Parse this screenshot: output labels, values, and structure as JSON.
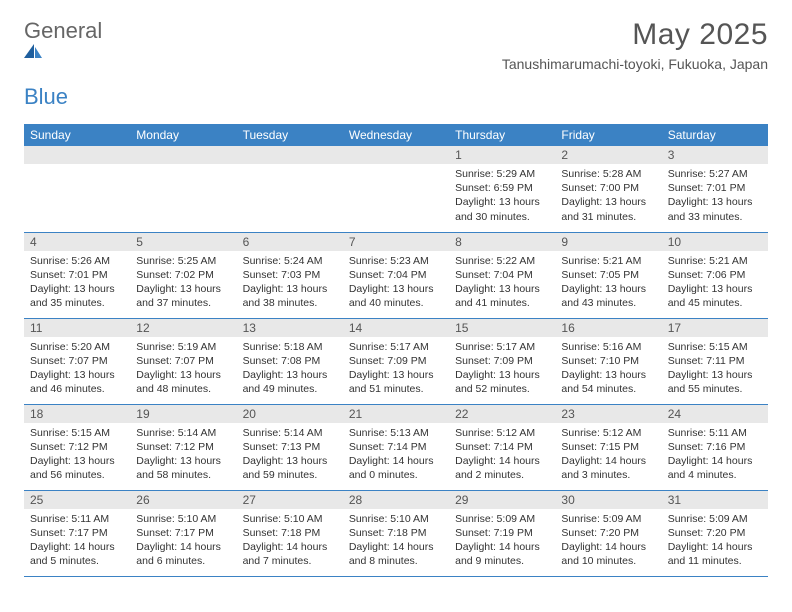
{
  "brand": {
    "part1": "General",
    "part2": "Blue"
  },
  "title": "May 2025",
  "location": "Tanushimarumachi-toyoki, Fukuoka, Japan",
  "colors": {
    "header_bg": "#3b82c4",
    "header_fg": "#ffffff",
    "daynum_bg": "#e8e8e8",
    "text": "#333333",
    "title": "#555555",
    "row_border": "#3b82c4"
  },
  "typography": {
    "title_fontsize": 30,
    "location_fontsize": 14,
    "weekday_fontsize": 12,
    "daynum_fontsize": 12,
    "body_fontsize": 10.5
  },
  "weekdays": [
    "Sunday",
    "Monday",
    "Tuesday",
    "Wednesday",
    "Thursday",
    "Friday",
    "Saturday"
  ],
  "weeks": [
    [
      null,
      null,
      null,
      null,
      {
        "n": "1",
        "sr": "5:29 AM",
        "ss": "6:59 PM",
        "dh": "13",
        "dm": "30"
      },
      {
        "n": "2",
        "sr": "5:28 AM",
        "ss": "7:00 PM",
        "dh": "13",
        "dm": "31"
      },
      {
        "n": "3",
        "sr": "5:27 AM",
        "ss": "7:01 PM",
        "dh": "13",
        "dm": "33"
      }
    ],
    [
      {
        "n": "4",
        "sr": "5:26 AM",
        "ss": "7:01 PM",
        "dh": "13",
        "dm": "35"
      },
      {
        "n": "5",
        "sr": "5:25 AM",
        "ss": "7:02 PM",
        "dh": "13",
        "dm": "37"
      },
      {
        "n": "6",
        "sr": "5:24 AM",
        "ss": "7:03 PM",
        "dh": "13",
        "dm": "38"
      },
      {
        "n": "7",
        "sr": "5:23 AM",
        "ss": "7:04 PM",
        "dh": "13",
        "dm": "40"
      },
      {
        "n": "8",
        "sr": "5:22 AM",
        "ss": "7:04 PM",
        "dh": "13",
        "dm": "41"
      },
      {
        "n": "9",
        "sr": "5:21 AM",
        "ss": "7:05 PM",
        "dh": "13",
        "dm": "43"
      },
      {
        "n": "10",
        "sr": "5:21 AM",
        "ss": "7:06 PM",
        "dh": "13",
        "dm": "45"
      }
    ],
    [
      {
        "n": "11",
        "sr": "5:20 AM",
        "ss": "7:07 PM",
        "dh": "13",
        "dm": "46"
      },
      {
        "n": "12",
        "sr": "5:19 AM",
        "ss": "7:07 PM",
        "dh": "13",
        "dm": "48"
      },
      {
        "n": "13",
        "sr": "5:18 AM",
        "ss": "7:08 PM",
        "dh": "13",
        "dm": "49"
      },
      {
        "n": "14",
        "sr": "5:17 AM",
        "ss": "7:09 PM",
        "dh": "13",
        "dm": "51"
      },
      {
        "n": "15",
        "sr": "5:17 AM",
        "ss": "7:09 PM",
        "dh": "13",
        "dm": "52"
      },
      {
        "n": "16",
        "sr": "5:16 AM",
        "ss": "7:10 PM",
        "dh": "13",
        "dm": "54"
      },
      {
        "n": "17",
        "sr": "5:15 AM",
        "ss": "7:11 PM",
        "dh": "13",
        "dm": "55"
      }
    ],
    [
      {
        "n": "18",
        "sr": "5:15 AM",
        "ss": "7:12 PM",
        "dh": "13",
        "dm": "56"
      },
      {
        "n": "19",
        "sr": "5:14 AM",
        "ss": "7:12 PM",
        "dh": "13",
        "dm": "58"
      },
      {
        "n": "20",
        "sr": "5:14 AM",
        "ss": "7:13 PM",
        "dh": "13",
        "dm": "59"
      },
      {
        "n": "21",
        "sr": "5:13 AM",
        "ss": "7:14 PM",
        "dh": "14",
        "dm": "0"
      },
      {
        "n": "22",
        "sr": "5:12 AM",
        "ss": "7:14 PM",
        "dh": "14",
        "dm": "2"
      },
      {
        "n": "23",
        "sr": "5:12 AM",
        "ss": "7:15 PM",
        "dh": "14",
        "dm": "3"
      },
      {
        "n": "24",
        "sr": "5:11 AM",
        "ss": "7:16 PM",
        "dh": "14",
        "dm": "4"
      }
    ],
    [
      {
        "n": "25",
        "sr": "5:11 AM",
        "ss": "7:17 PM",
        "dh": "14",
        "dm": "5"
      },
      {
        "n": "26",
        "sr": "5:10 AM",
        "ss": "7:17 PM",
        "dh": "14",
        "dm": "6"
      },
      {
        "n": "27",
        "sr": "5:10 AM",
        "ss": "7:18 PM",
        "dh": "14",
        "dm": "7"
      },
      {
        "n": "28",
        "sr": "5:10 AM",
        "ss": "7:18 PM",
        "dh": "14",
        "dm": "8"
      },
      {
        "n": "29",
        "sr": "5:09 AM",
        "ss": "7:19 PM",
        "dh": "14",
        "dm": "9"
      },
      {
        "n": "30",
        "sr": "5:09 AM",
        "ss": "7:20 PM",
        "dh": "14",
        "dm": "10"
      },
      {
        "n": "31",
        "sr": "5:09 AM",
        "ss": "7:20 PM",
        "dh": "14",
        "dm": "11"
      }
    ]
  ],
  "labels": {
    "sunrise": "Sunrise:",
    "sunset": "Sunset:",
    "daylight": "Daylight:",
    "hours": "hours",
    "and": "and",
    "minutes": "minutes."
  }
}
